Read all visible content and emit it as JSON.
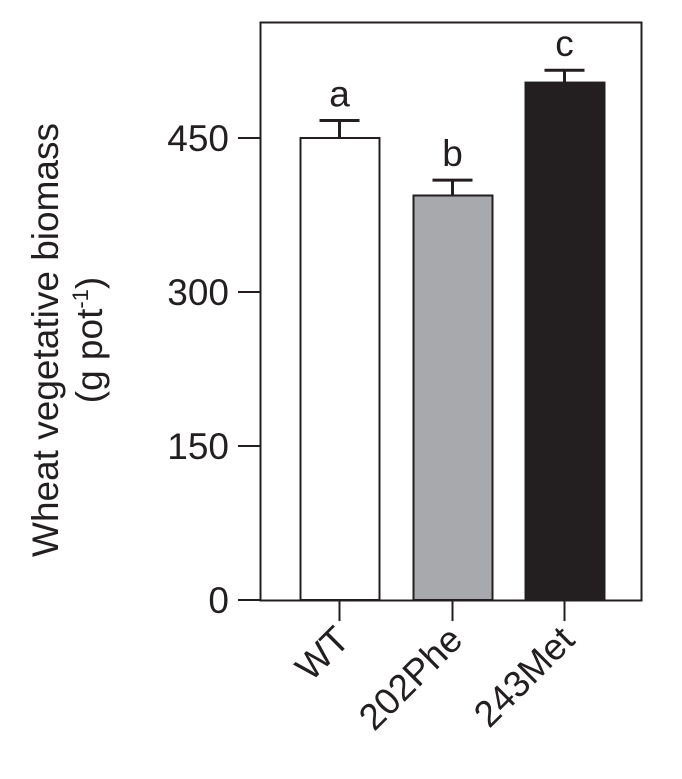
{
  "chart_data": {
    "type": "bar",
    "title": "",
    "xlabel": "",
    "ylabel": "Wheat vegetative biomass",
    "ylabel_units": "(g pot",
    "ylabel_units_superscript": "-1",
    "ylabel_units_close": ")",
    "ylim": [
      0,
      560
    ],
    "yticks": [
      0,
      150,
      300,
      450
    ],
    "ytick_labels": [
      "0",
      "150",
      "300",
      "450"
    ],
    "categories": [
      "WT",
      "202Phe",
      "243Met"
    ],
    "values": [
      450,
      394,
      504
    ],
    "errors": [
      17,
      15,
      12
    ],
    "significance_letters": [
      "a",
      "b",
      "c"
    ],
    "bar_colors": [
      "#ffffff",
      "#a7a9ac",
      "#231f20"
    ],
    "grid": false,
    "legend": null
  }
}
